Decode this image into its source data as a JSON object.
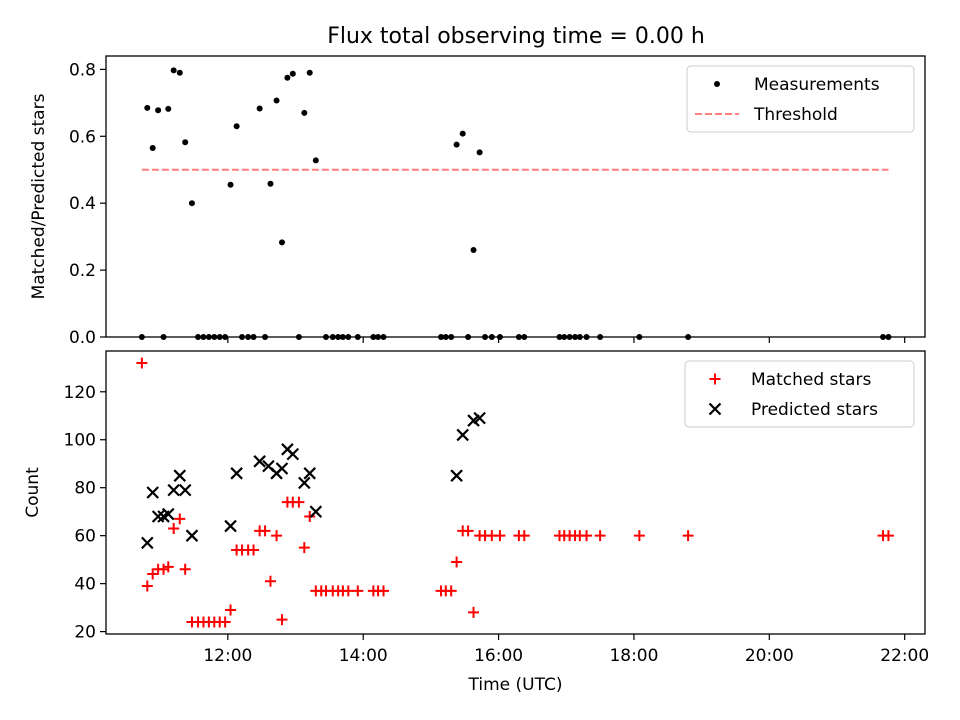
{
  "figure": {
    "title": "Flux total observing time = 0.00 h"
  },
  "chart_data": [
    {
      "type": "scatter",
      "xlabel": "",
      "ylabel": "Matched/Predicted stars",
      "x_unit": "hours (UTC)",
      "xlim": [
        10.2,
        22.3
      ],
      "ylim": [
        0,
        0.84
      ],
      "y_ticks": [
        0.0,
        0.2,
        0.4,
        0.6,
        0.8
      ],
      "y_tick_labels": [
        "0.0",
        "0.2",
        "0.4",
        "0.6",
        "0.8"
      ],
      "x_tick_labels_shown": false,
      "legend": {
        "placement": "top-right",
        "entries": [
          {
            "label": "Measurements",
            "marker": "dot",
            "color": "#000000"
          },
          {
            "label": "Threshold",
            "marker": "dashed-line",
            "color": "#ff7f7f"
          }
        ]
      },
      "series": [
        {
          "name": "Measurements",
          "color": "#000000",
          "marker": "dot",
          "points": [
            [
              10.73,
              0.0
            ],
            [
              10.81,
              0.685
            ],
            [
              10.89,
              0.565
            ],
            [
              10.97,
              0.678
            ],
            [
              11.05,
              0.0
            ],
            [
              11.12,
              0.682
            ],
            [
              11.2,
              0.797
            ],
            [
              11.29,
              0.79
            ],
            [
              11.37,
              0.582
            ],
            [
              11.47,
              0.4
            ],
            [
              11.56,
              0.0
            ],
            [
              11.64,
              0.0
            ],
            [
              11.72,
              0.0
            ],
            [
              11.8,
              0.0
            ],
            [
              11.88,
              0.0
            ],
            [
              11.96,
              0.0
            ],
            [
              12.04,
              0.455
            ],
            [
              12.13,
              0.63
            ],
            [
              12.21,
              0.0
            ],
            [
              12.3,
              0.0
            ],
            [
              12.38,
              0.0
            ],
            [
              12.47,
              0.683
            ],
            [
              12.55,
              0.0
            ],
            [
              12.63,
              0.458
            ],
            [
              12.72,
              0.707
            ],
            [
              12.8,
              0.283
            ],
            [
              12.88,
              0.775
            ],
            [
              12.96,
              0.787
            ],
            [
              13.05,
              0.0
            ],
            [
              13.13,
              0.67
            ],
            [
              13.21,
              0.79
            ],
            [
              13.3,
              0.528
            ],
            [
              13.45,
              0.0
            ],
            [
              13.55,
              0.0
            ],
            [
              13.63,
              0.0
            ],
            [
              13.7,
              0.0
            ],
            [
              13.78,
              0.0
            ],
            [
              13.92,
              0.0
            ],
            [
              14.15,
              0.0
            ],
            [
              14.22,
              0.0
            ],
            [
              14.3,
              0.0
            ],
            [
              15.15,
              0.0
            ],
            [
              15.22,
              0.0
            ],
            [
              15.3,
              0.0
            ],
            [
              15.38,
              0.575
            ],
            [
              15.47,
              0.608
            ],
            [
              15.55,
              0.0
            ],
            [
              15.63,
              0.26
            ],
            [
              15.72,
              0.552
            ],
            [
              15.8,
              0.0
            ],
            [
              15.9,
              0.0
            ],
            [
              16.02,
              0.0
            ],
            [
              16.3,
              0.0
            ],
            [
              16.38,
              0.0
            ],
            [
              16.9,
              0.0
            ],
            [
              16.97,
              0.0
            ],
            [
              17.05,
              0.0
            ],
            [
              17.13,
              0.0
            ],
            [
              17.2,
              0.0
            ],
            [
              17.3,
              0.0
            ],
            [
              17.5,
              0.0
            ],
            [
              18.08,
              0.0
            ],
            [
              18.8,
              0.0
            ],
            [
              21.68,
              0.0
            ],
            [
              21.76,
              0.0
            ]
          ]
        },
        {
          "name": "Threshold",
          "color": "#ff7f7f",
          "style": "dashed",
          "points": [
            [
              10.73,
              0.5
            ],
            [
              21.76,
              0.5
            ]
          ]
        }
      ]
    },
    {
      "type": "scatter",
      "xlabel": "Time (UTC)",
      "ylabel": "Count",
      "x_unit": "hours (UTC)",
      "xlim": [
        10.2,
        22.3
      ],
      "ylim": [
        19,
        137
      ],
      "y_ticks": [
        20,
        40,
        60,
        80,
        100,
        120
      ],
      "y_tick_labels": [
        "20",
        "40",
        "60",
        "80",
        "100",
        "120"
      ],
      "x_ticks": [
        12,
        14,
        16,
        18,
        20,
        22
      ],
      "x_tick_labels": [
        "12:00",
        "14:00",
        "16:00",
        "18:00",
        "20:00",
        "22:00"
      ],
      "legend": {
        "placement": "top-right",
        "entries": [
          {
            "label": "Matched stars",
            "marker": "plus",
            "color": "#ff0000"
          },
          {
            "label": "Predicted stars",
            "marker": "x",
            "color": "#000000"
          }
        ]
      },
      "series": [
        {
          "name": "Matched stars",
          "color": "#ff0000",
          "marker": "plus",
          "points": [
            [
              10.73,
              132
            ],
            [
              10.81,
              39
            ],
            [
              10.89,
              44
            ],
            [
              10.97,
              46
            ],
            [
              11.05,
              46
            ],
            [
              11.12,
              47
            ],
            [
              11.2,
              63
            ],
            [
              11.29,
              67
            ],
            [
              11.37,
              46
            ],
            [
              11.47,
              24
            ],
            [
              11.56,
              24
            ],
            [
              11.64,
              24
            ],
            [
              11.72,
              24
            ],
            [
              11.8,
              24
            ],
            [
              11.88,
              24
            ],
            [
              11.96,
              24
            ],
            [
              12.04,
              29
            ],
            [
              12.13,
              54
            ],
            [
              12.21,
              54
            ],
            [
              12.3,
              54
            ],
            [
              12.38,
              54
            ],
            [
              12.47,
              62
            ],
            [
              12.55,
              62
            ],
            [
              12.63,
              41
            ],
            [
              12.72,
              60
            ],
            [
              12.8,
              25
            ],
            [
              12.88,
              74
            ],
            [
              12.96,
              74
            ],
            [
              13.05,
              74
            ],
            [
              13.13,
              55
            ],
            [
              13.21,
              68
            ],
            [
              13.3,
              37
            ],
            [
              13.38,
              37
            ],
            [
              13.45,
              37
            ],
            [
              13.55,
              37
            ],
            [
              13.63,
              37
            ],
            [
              13.7,
              37
            ],
            [
              13.78,
              37
            ],
            [
              13.92,
              37
            ],
            [
              14.15,
              37
            ],
            [
              14.22,
              37
            ],
            [
              14.3,
              37
            ],
            [
              15.15,
              37
            ],
            [
              15.22,
              37
            ],
            [
              15.3,
              37
            ],
            [
              15.38,
              49
            ],
            [
              15.47,
              62
            ],
            [
              15.55,
              62
            ],
            [
              15.63,
              28
            ],
            [
              15.72,
              60
            ],
            [
              15.8,
              60
            ],
            [
              15.9,
              60
            ],
            [
              16.02,
              60
            ],
            [
              16.3,
              60
            ],
            [
              16.38,
              60
            ],
            [
              16.9,
              60
            ],
            [
              16.97,
              60
            ],
            [
              17.05,
              60
            ],
            [
              17.13,
              60
            ],
            [
              17.2,
              60
            ],
            [
              17.3,
              60
            ],
            [
              17.5,
              60
            ],
            [
              18.08,
              60
            ],
            [
              18.8,
              60
            ],
            [
              21.68,
              60
            ],
            [
              21.76,
              60
            ]
          ]
        },
        {
          "name": "Predicted stars",
          "color": "#000000",
          "marker": "x",
          "points": [
            [
              10.81,
              57
            ],
            [
              10.89,
              78
            ],
            [
              10.97,
              68
            ],
            [
              11.05,
              68
            ],
            [
              11.12,
              69
            ],
            [
              11.2,
              79
            ],
            [
              11.29,
              85
            ],
            [
              11.37,
              79
            ],
            [
              11.47,
              60
            ],
            [
              12.04,
              64
            ],
            [
              12.13,
              86
            ],
            [
              12.47,
              91
            ],
            [
              12.6,
              89
            ],
            [
              12.72,
              86
            ],
            [
              12.8,
              88
            ],
            [
              12.88,
              96
            ],
            [
              12.96,
              94
            ],
            [
              13.13,
              82
            ],
            [
              13.21,
              86
            ],
            [
              13.3,
              70
            ],
            [
              15.38,
              85
            ],
            [
              15.47,
              102
            ],
            [
              15.63,
              108
            ],
            [
              15.72,
              109
            ]
          ]
        }
      ]
    }
  ]
}
